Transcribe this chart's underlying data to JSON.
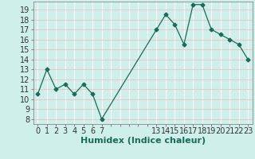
{
  "x": [
    0,
    1,
    2,
    3,
    4,
    5,
    6,
    7,
    13,
    14,
    15,
    16,
    17,
    18,
    19,
    20,
    21,
    22,
    23
  ],
  "y": [
    10.5,
    13,
    11,
    11.5,
    10.5,
    11.5,
    10.5,
    8,
    17,
    18.5,
    17.5,
    15.5,
    19.5,
    19.5,
    17,
    16.5,
    16,
    15.5,
    14
  ],
  "line_color": "#1a6b5a",
  "marker": "D",
  "marker_size": 2.5,
  "bg_color": "#cff0ea",
  "grid_color_h": "#e8c8c8",
  "grid_color_v": "#ffffff",
  "xlabel": "Humidex (Indice chaleur)",
  "xlim": [
    -0.5,
    23.5
  ],
  "ylim": [
    7.5,
    19.8
  ],
  "yticks": [
    8,
    9,
    10,
    11,
    12,
    13,
    14,
    15,
    16,
    17,
    18,
    19
  ],
  "xlabel_fontsize": 8,
  "tick_fontsize": 7
}
